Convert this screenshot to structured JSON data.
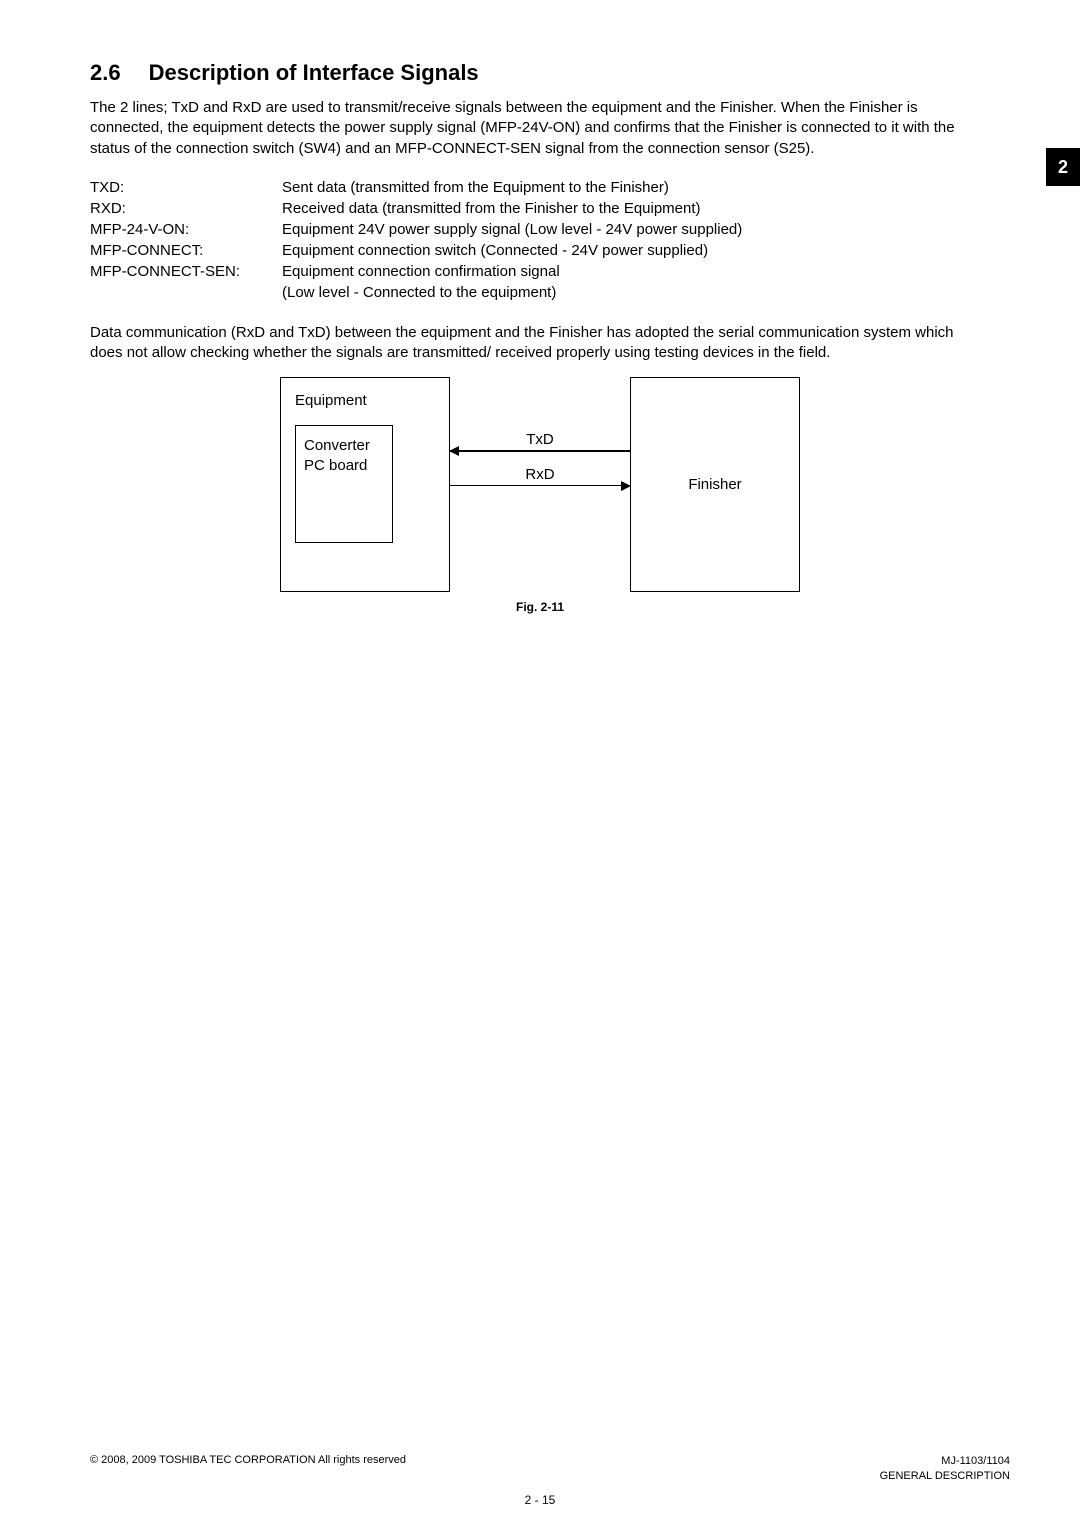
{
  "section": {
    "number": "2.6",
    "title": "Description of Interface Signals"
  },
  "intro": "The 2 lines; TxD and RxD are used to transmit/receive signals between the equipment and the Finisher. When the Finisher is connected, the equipment detects the power supply signal (MFP-24V-ON) and confirms that the Finisher is connected to it with the status of the connection switch (SW4) and an MFP-CONNECT-SEN signal from the connection sensor (S25).",
  "signals": [
    {
      "label": "TXD:",
      "desc": "Sent data (transmitted from the Equipment to the Finisher)"
    },
    {
      "label": "RXD:",
      "desc": "Received data (transmitted from the Finisher to the Equipment)"
    },
    {
      "label": "MFP-24-V-ON:",
      "desc": "Equipment 24V power supply signal (Low level - 24V power supplied)"
    },
    {
      "label": "MFP-CONNECT:",
      "desc": "Equipment connection switch (Connected - 24V power supplied)"
    },
    {
      "label": "MFP-CONNECT-SEN:",
      "desc": "Equipment connection confirmation signal"
    },
    {
      "label": "",
      "desc": "(Low level - Connected to the equipment)"
    }
  ],
  "para2": "Data communication (RxD and TxD) between the equipment and the Finisher has adopted the serial communication system which does not allow checking whether the signals are transmitted/ received properly using testing devices in the field.",
  "diagram": {
    "equipment": "Equipment",
    "converter_l1": "Converter",
    "converter_l2": "PC board",
    "txd": "TxD",
    "rxd": "RxD",
    "finisher": "Finisher"
  },
  "figcap": "Fig. 2-11",
  "sidetab": "2",
  "footer": {
    "copyright": "© 2008, 2009 TOSHIBA TEC CORPORATION All rights reserved",
    "model": "MJ-1103/1104",
    "section": "GENERAL DESCRIPTION",
    "pagenum": "2 - 15"
  }
}
